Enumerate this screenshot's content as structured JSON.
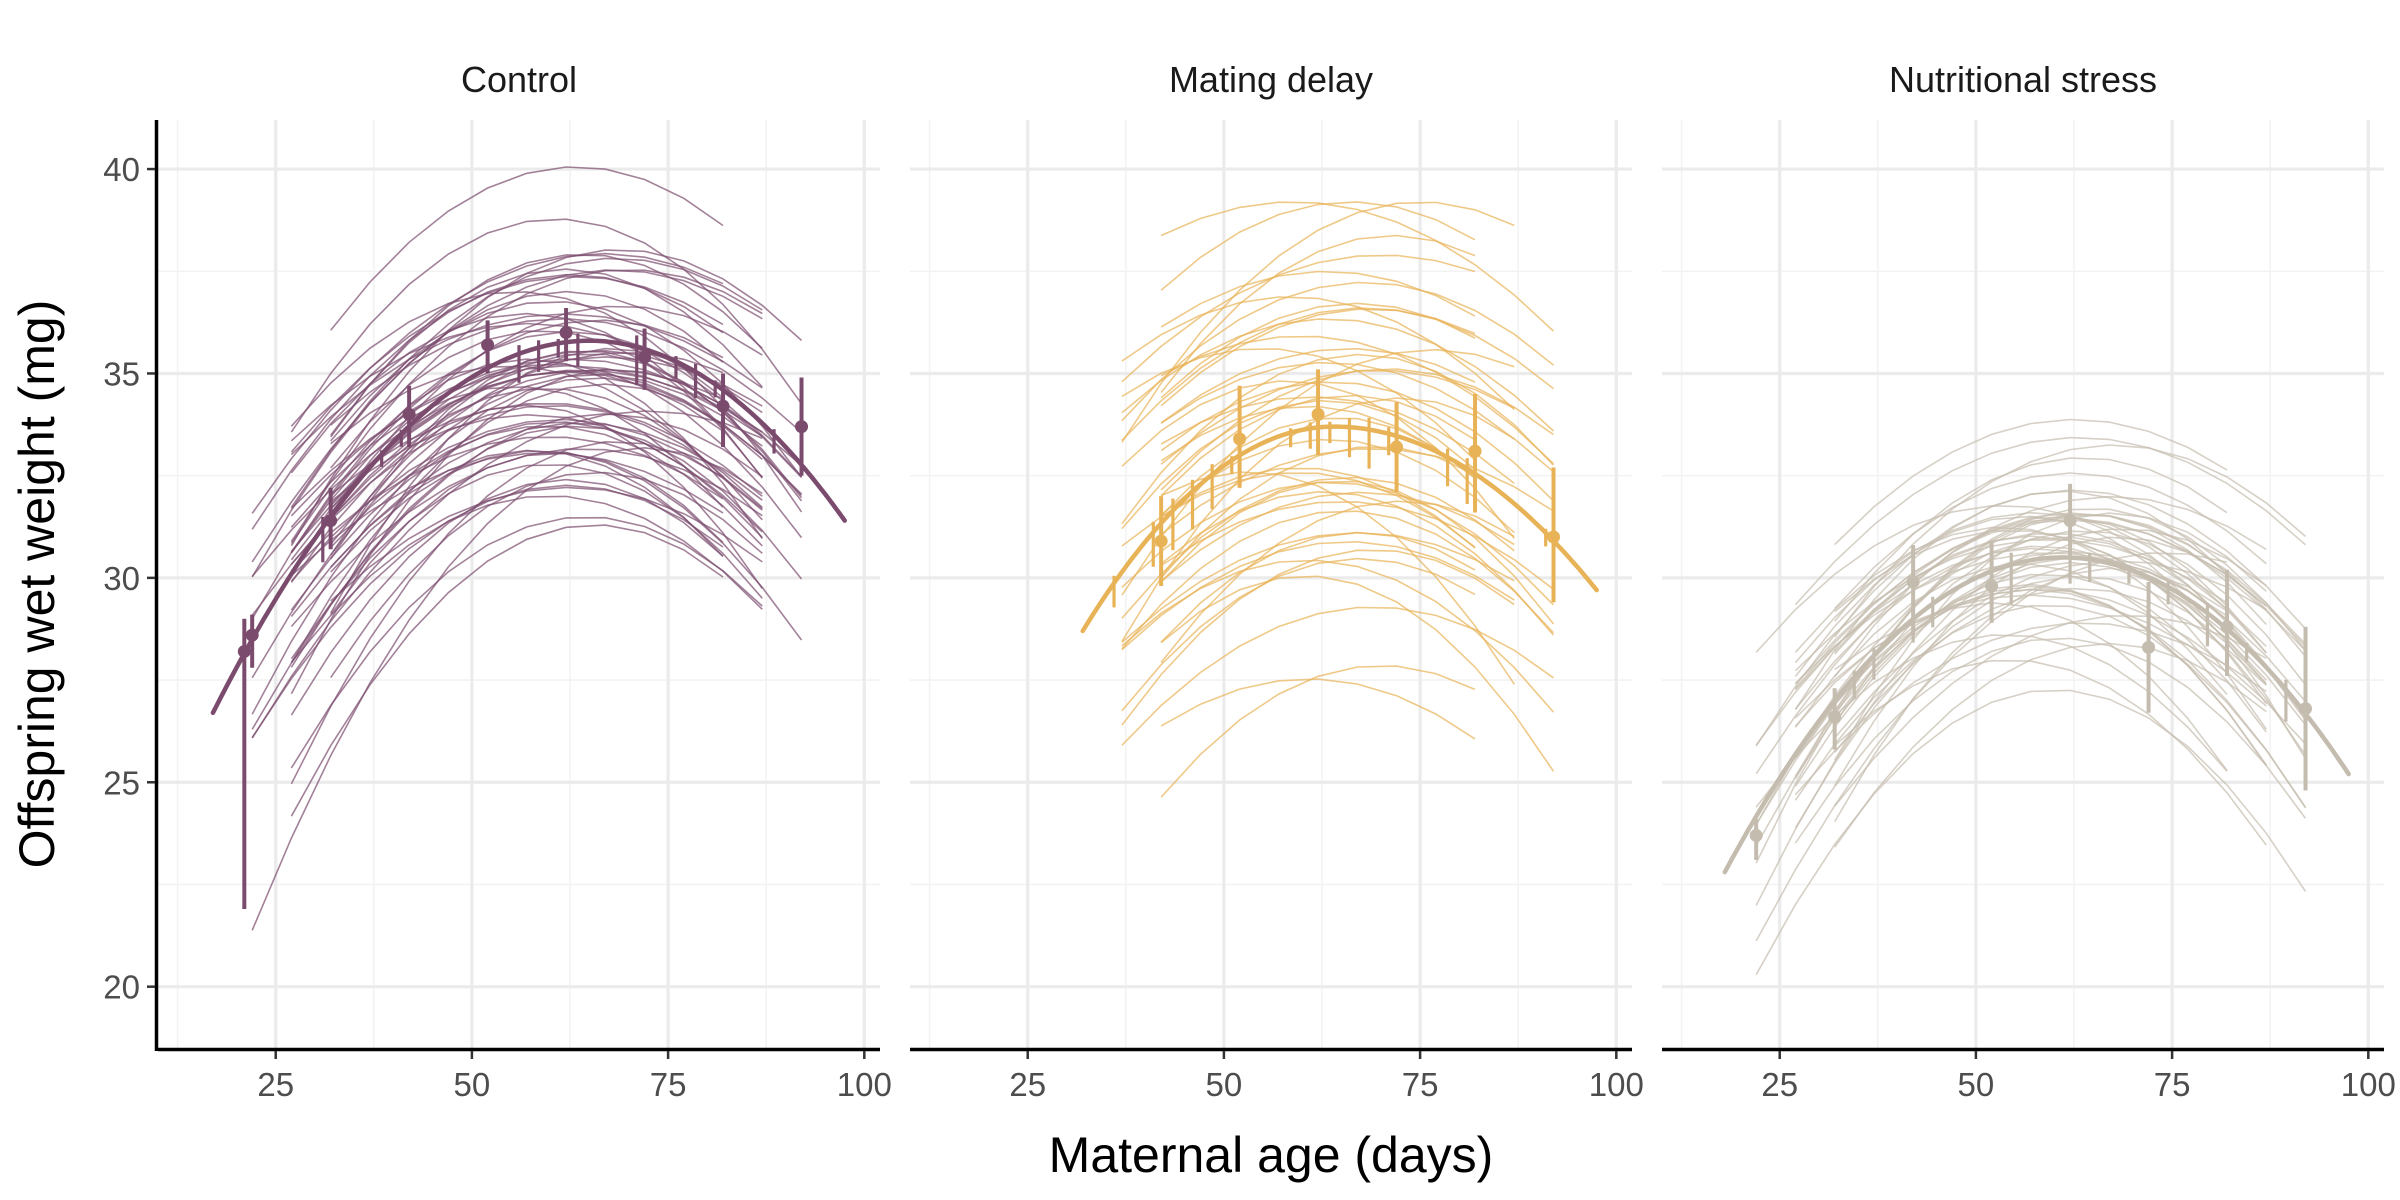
{
  "chart_data": {
    "type": "line",
    "xlabel": "Maternal age (days)",
    "ylabel": "Offspring wet weight (mg)",
    "xlim": [
      10,
      102
    ],
    "ylim": [
      18.5,
      41.2
    ],
    "x_ticks": [
      25,
      50,
      75,
      100
    ],
    "y_ticks": [
      20,
      25,
      30,
      35,
      40
    ],
    "x_tick_labels": [
      "25",
      "50",
      "75",
      "100"
    ],
    "y_tick_labels": [
      "20",
      "25",
      "30",
      "35",
      "40"
    ],
    "grid": true,
    "legend": "none",
    "panels": [
      {
        "name": "Control",
        "color": "#7b4b6e",
        "fit": {
          "x_start": 17,
          "x_end": 97.5,
          "y_start": 26.7,
          "peak_x": 65,
          "peak_y": 35.8,
          "y_end": 31.4
        },
        "individual_lines": {
          "count": 70,
          "x_min": 20,
          "x_max": 96,
          "peak_x_mean": 63,
          "peak_x_sd": 4,
          "peak_mean": 35.3,
          "peak_sd": 1.8,
          "peak_min": 31.3,
          "peak_max": 40.1
        },
        "means": [
          {
            "x": 21,
            "y": 28.2,
            "lo": 21.9,
            "hi": 29.0
          },
          {
            "x": 22,
            "y": 28.6,
            "lo": 27.8,
            "hi": 29.1
          },
          {
            "x": 32,
            "y": 31.4,
            "lo": 30.7,
            "hi": 32.2
          },
          {
            "x": 42,
            "y": 34.0,
            "lo": 33.2,
            "hi": 34.7
          },
          {
            "x": 52,
            "y": 35.7,
            "lo": 35.0,
            "hi": 36.3
          },
          {
            "x": 62,
            "y": 36.0,
            "lo": 35.3,
            "hi": 36.6
          },
          {
            "x": 72,
            "y": 35.4,
            "lo": 34.6,
            "hi": 36.1
          },
          {
            "x": 82,
            "y": 34.2,
            "lo": 33.2,
            "hi": 35.0
          },
          {
            "x": 92,
            "y": 33.7,
            "lo": 32.5,
            "hi": 34.9
          }
        ]
      },
      {
        "name": "Mating delay",
        "color": "#e8b256",
        "fit": {
          "x_start": 32,
          "x_end": 97.5,
          "y_start": 28.7,
          "peak_x": 64,
          "peak_y": 33.7,
          "y_end": 29.7
        },
        "individual_lines": {
          "count": 52,
          "x_min": 32,
          "x_max": 96,
          "peak_x_mean": 65,
          "peak_x_sd": 5,
          "peak_mean": 33.4,
          "peak_sd": 2.7,
          "peak_min": 26.1,
          "peak_max": 39.2
        },
        "means": [
          {
            "x": 42,
            "y": 30.9,
            "lo": 29.8,
            "hi": 32.0
          },
          {
            "x": 52,
            "y": 33.4,
            "lo": 32.2,
            "hi": 34.7
          },
          {
            "x": 62,
            "y": 34.0,
            "lo": 33.0,
            "hi": 35.1
          },
          {
            "x": 72,
            "y": 33.2,
            "lo": 32.1,
            "hi": 34.3
          },
          {
            "x": 82,
            "y": 33.1,
            "lo": 31.6,
            "hi": 34.5
          },
          {
            "x": 92,
            "y": 31.0,
            "lo": 29.4,
            "hi": 32.7
          }
        ]
      },
      {
        "name": "Nutritional stress",
        "color": "#c4bcae",
        "fit": {
          "x_start": 18,
          "x_end": 97.5,
          "y_start": 22.8,
          "peak_x": 61,
          "peak_y": 30.5,
          "y_end": 25.2
        },
        "individual_lines": {
          "count": 55,
          "x_min": 20,
          "x_max": 96,
          "peak_x_mean": 61,
          "peak_x_sd": 4,
          "peak_mean": 30.4,
          "peak_sd": 1.3,
          "peak_min": 26.9,
          "peak_max": 34.1
        },
        "means": [
          {
            "x": 22,
            "y": 23.7,
            "lo": 23.1,
            "hi": 24.1
          },
          {
            "x": 32,
            "y": 26.6,
            "lo": 25.8,
            "hi": 27.3
          },
          {
            "x": 42,
            "y": 29.9,
            "lo": 28.6,
            "hi": 30.8
          },
          {
            "x": 52,
            "y": 29.8,
            "lo": 28.9,
            "hi": 30.9
          },
          {
            "x": 62,
            "y": 31.4,
            "lo": 30.5,
            "hi": 32.3
          },
          {
            "x": 72,
            "y": 28.3,
            "lo": 26.7,
            "hi": 29.9
          },
          {
            "x": 82,
            "y": 28.8,
            "lo": 27.6,
            "hi": 30.2
          },
          {
            "x": 92,
            "y": 26.8,
            "lo": 24.8,
            "hi": 28.8
          }
        ]
      }
    ]
  }
}
